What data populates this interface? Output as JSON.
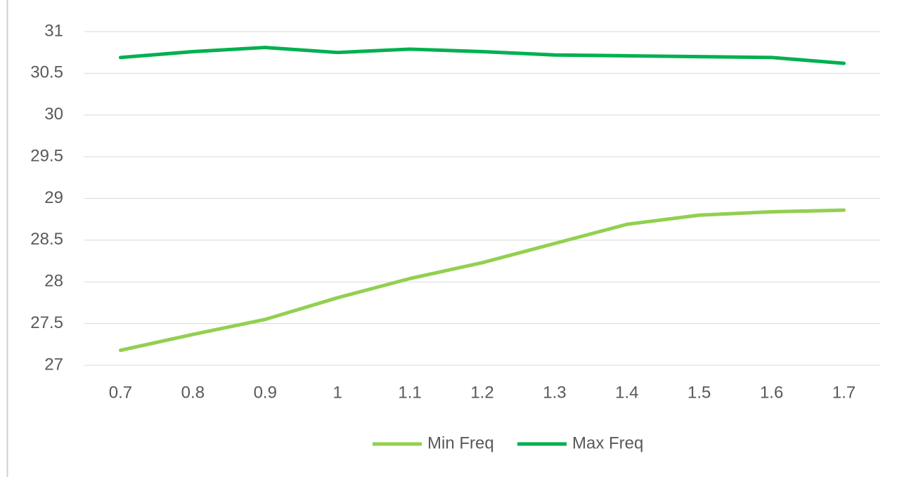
{
  "chart_data": {
    "type": "line",
    "categories": [
      "0.7",
      "0.8",
      "0.9",
      "1",
      "1.1",
      "1.2",
      "1.3",
      "1.4",
      "1.5",
      "1.6",
      "1.7"
    ],
    "series": [
      {
        "name": "Min Freq",
        "color": "#92d050",
        "values": [
          27.18,
          27.37,
          27.55,
          27.81,
          28.04,
          28.23,
          28.46,
          28.69,
          28.8,
          28.84,
          28.86
        ]
      },
      {
        "name": "Max Freq",
        "color": "#00b050",
        "values": [
          30.69,
          30.76,
          30.81,
          30.75,
          30.79,
          30.76,
          30.72,
          30.71,
          30.7,
          30.69,
          30.62
        ]
      }
    ],
    "ylim": [
      27,
      31
    ],
    "yticks": [
      27,
      27.5,
      28,
      28.5,
      29,
      29.5,
      30,
      30.5,
      31
    ],
    "grid": true,
    "legend": "bottom"
  }
}
